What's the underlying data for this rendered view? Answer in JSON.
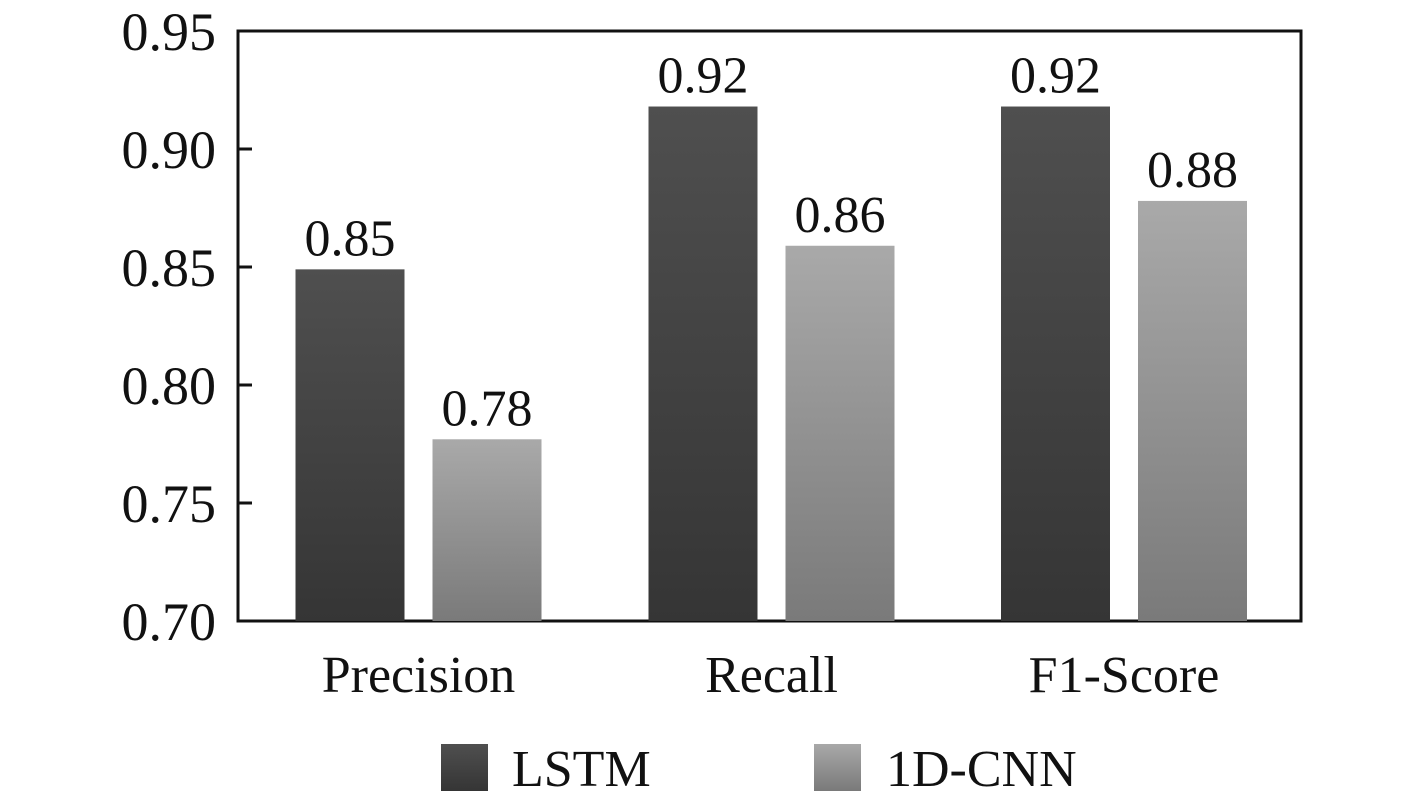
{
  "chart_data": {
    "type": "bar",
    "title": "",
    "xlabel": "",
    "ylabel": "",
    "categories": [
      "Precision",
      "Recall",
      "F1-Score"
    ],
    "series": [
      {
        "name": "LSTM",
        "values": [
          0.849,
          0.918,
          0.918
        ],
        "labels": [
          "0.85",
          "0.92",
          "0.92"
        ],
        "color_top": "#4f4f4f",
        "color_bottom": "#353535"
      },
      {
        "name": "1D-CNN",
        "values": [
          0.777,
          0.859,
          0.878
        ],
        "labels": [
          "0.78",
          "0.86",
          "0.88"
        ],
        "color_top": "#a9a9a9",
        "color_bottom": "#7a7a7a"
      }
    ],
    "ylim": [
      0.7,
      0.95
    ],
    "yticks": [
      "0.70",
      "0.75",
      "0.80",
      "0.85",
      "0.90",
      "0.95"
    ],
    "grid": false,
    "legend": {
      "position": "bottom-center",
      "entries": [
        "LSTM",
        "1D-CNN"
      ]
    }
  }
}
